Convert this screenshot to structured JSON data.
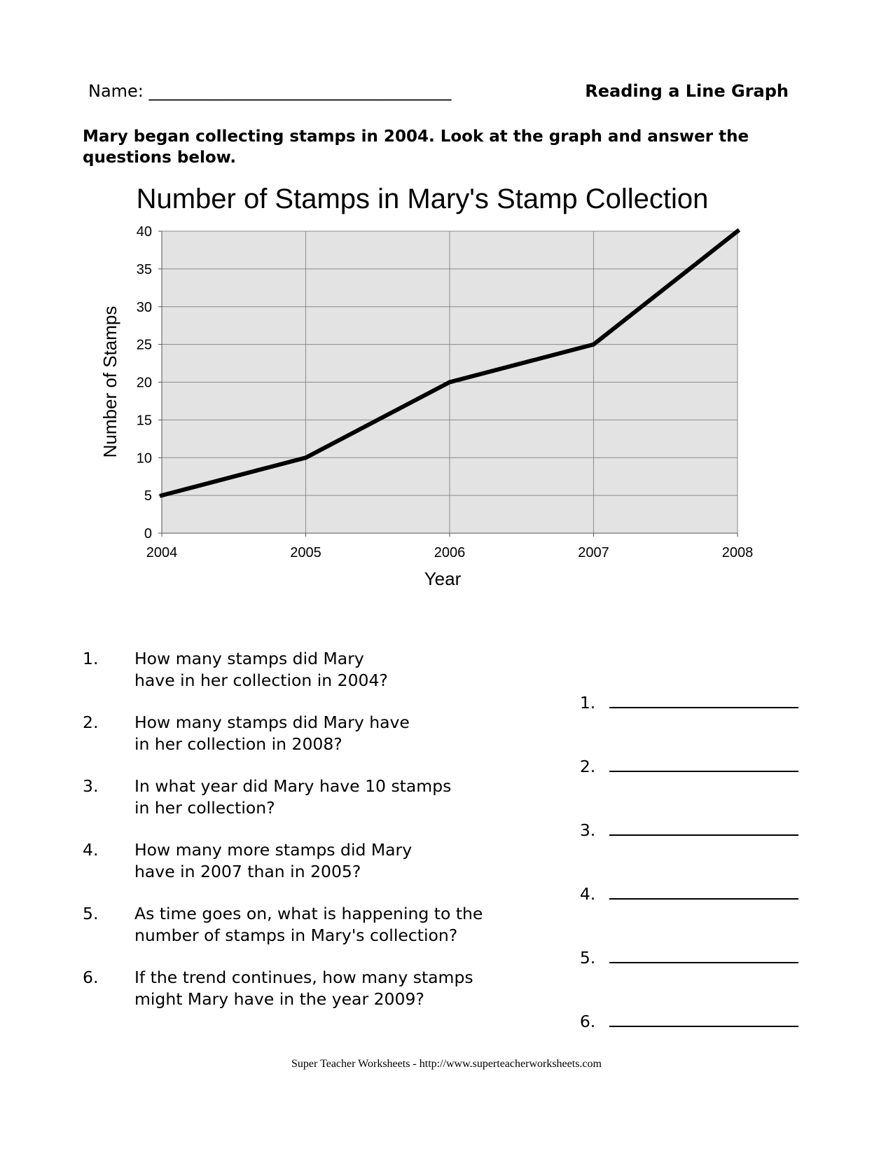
{
  "header": {
    "name_label": "Name: ____________________________________",
    "worksheet_title": "Reading a Line Graph"
  },
  "instructions": "Mary began collecting stamps in 2004.  Look at the graph and answer the questions below.",
  "chart_data": {
    "type": "line",
    "title": "Number of Stamps in Mary's Stamp Collection",
    "xlabel": "Year",
    "ylabel": "Number of Stamps",
    "x": [
      "2004",
      "2005",
      "2006",
      "2007",
      "2008"
    ],
    "series": [
      {
        "values": [
          5,
          10,
          20,
          25,
          40
        ]
      }
    ],
    "ylim": [
      0,
      40
    ],
    "yticks": [
      0,
      5,
      10,
      15,
      20,
      25,
      30,
      35,
      40
    ],
    "grid": true,
    "plot_background": "#e3e3e3",
    "line_color": "#000000"
  },
  "questions": [
    {
      "number": "1.",
      "line1": "How many stamps did Mary",
      "line2": "have in her collection in 2004?",
      "answer_label": "1."
    },
    {
      "number": "2.",
      "line1": "How many stamps did Mary have",
      "line2": "in her collection in 2008?",
      "answer_label": "2."
    },
    {
      "number": "3.",
      "line1": "In what year did Mary have 10 stamps",
      "line2": "in her collection?",
      "answer_label": "3."
    },
    {
      "number": "4.",
      "line1": "How many more stamps did Mary",
      "line2": "have in 2007 than in 2005?",
      "answer_label": "4."
    },
    {
      "number": "5.",
      "line1": "As time goes on, what is happening to the",
      "line2": "number of stamps in Mary's collection?",
      "answer_label": "5."
    },
    {
      "number": "6.",
      "line1": "If the trend continues, how many stamps",
      "line2": "might Mary have in the year 2009?",
      "answer_label": "6."
    }
  ],
  "footer": "Super Teacher Worksheets - http://www.superteacherworksheets.com"
}
